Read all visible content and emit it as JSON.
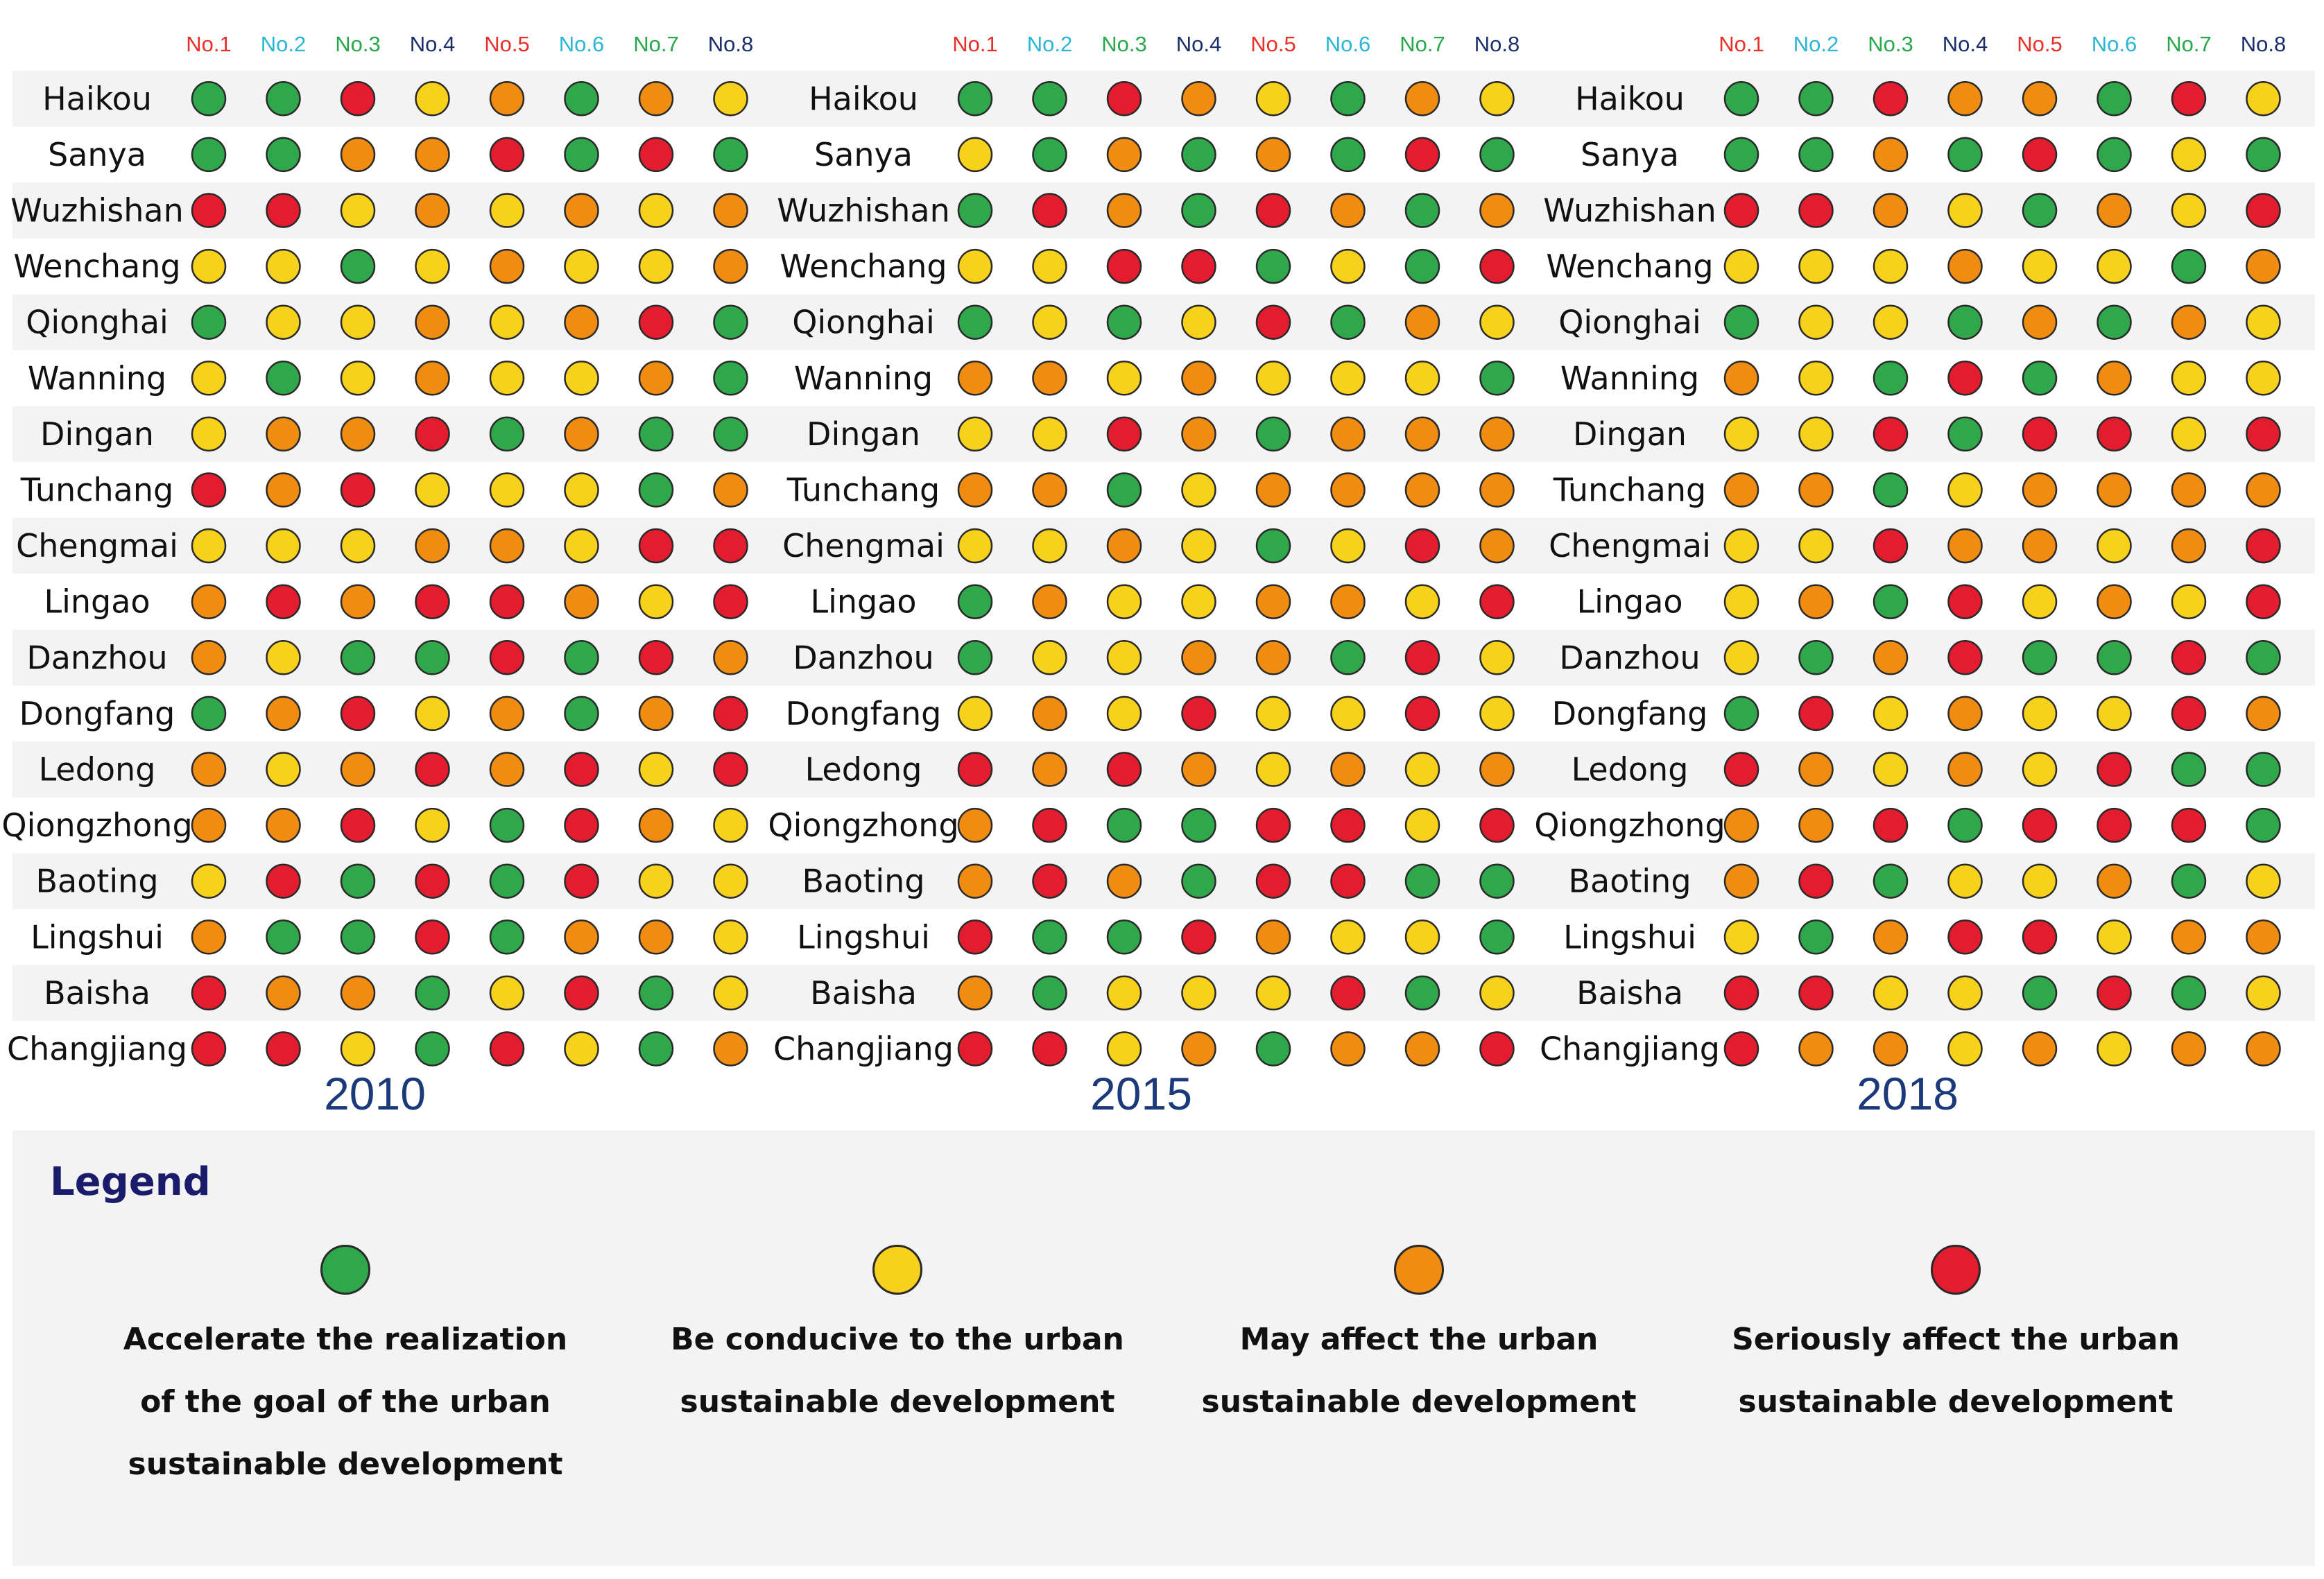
{
  "chart_data": {
    "type": "dot-matrix",
    "columns": [
      "No.1",
      "No.2",
      "No.3",
      "No.4",
      "No.5",
      "No.6",
      "No.7",
      "No.8"
    ],
    "column_colors": [
      "#e8302a",
      "#2bb6d6",
      "#27a84a",
      "#1b2f6b",
      "#e8302a",
      "#2bb6d6",
      "#27a84a",
      "#1b2f6b"
    ],
    "cities": [
      "Haikou",
      "Sanya",
      "Wuzhishan",
      "Wenchang",
      "Qionghai",
      "Wanning",
      "Dingan",
      "Tunchang",
      "Chengmai",
      "Lingao",
      "Danzhou",
      "Dongfang",
      "Ledong",
      "Qiongzhong",
      "Baoting",
      "Lingshui",
      "Baisha",
      "Changjiang"
    ],
    "category_key": {
      "G": "green",
      "Y": "yellow",
      "O": "orange",
      "R": "red"
    },
    "category_colors": {
      "G": "#2ea84a",
      "Y": "#f7d11c",
      "O": "#f08c12",
      "R": "#e31c2e"
    },
    "panels": [
      {
        "year": "2010",
        "rows": [
          "GGRYOGOY",
          "GGOORGRG",
          "RRYOYOYO",
          "YYGYOYYO",
          "GYYOYORG",
          "YGYOYYOG",
          "YOORGOGG",
          "RORYYYGO",
          "YYYOOYRR",
          "ORORROYR",
          "OYGGRGRO",
          "GORYOGOR",
          "OYORORYR",
          "OORYGROY",
          "YRGRGRYY",
          "OGGRGOOY",
          "ROOGYRGY",
          "RRYGRYGO"
        ]
      },
      {
        "year": "2015",
        "rows": [
          "GGROYGOY",
          "YGOGOGRG",
          "GROGROGO",
          "YYRRGYGR",
          "GYGYRGOY",
          "OOYOYYYG",
          "YYROGOOO",
          "OOGYOOOO",
          "YYOYGYRO",
          "GOYYOOYR",
          "GYYOOGRY",
          "YOYRYYRY",
          "ROROYOYO",
          "ORGGRRYR",
          "OROGRRGG",
          "RGGROYYG",
          "OGYYYRGY",
          "RRYOGOOR"
        ]
      },
      {
        "year": "2018",
        "rows": [
          "GGROOGRY",
          "GGOGRGYG",
          "RROYGOYR",
          "YYYOYYGO",
          "GYYGOGOY",
          "OYGRGOYY",
          "YYRGRRYR",
          "OOGYOOOO",
          "YYROOYOR",
          "YOGRYOYR",
          "YGORGGRG",
          "GRYOYYRO",
          "ROYOYRGG",
          "OORGRRRG",
          "ORGYYOGY",
          "YGORRYOO",
          "RRYYGRGY",
          "ROOYOYOO"
        ]
      }
    ],
    "legend": {
      "title": "Legend",
      "items": [
        {
          "key": "G",
          "label": "Accelerate the realization\nof the goal of the urban\nsustainable development"
        },
        {
          "key": "Y",
          "label": "Be conducive to the urban\nsustainable development"
        },
        {
          "key": "O",
          "label": "May affect the urban\nsustainable development"
        },
        {
          "key": "R",
          "label": "Seriously affect the urban\nsustainable development"
        }
      ]
    }
  }
}
